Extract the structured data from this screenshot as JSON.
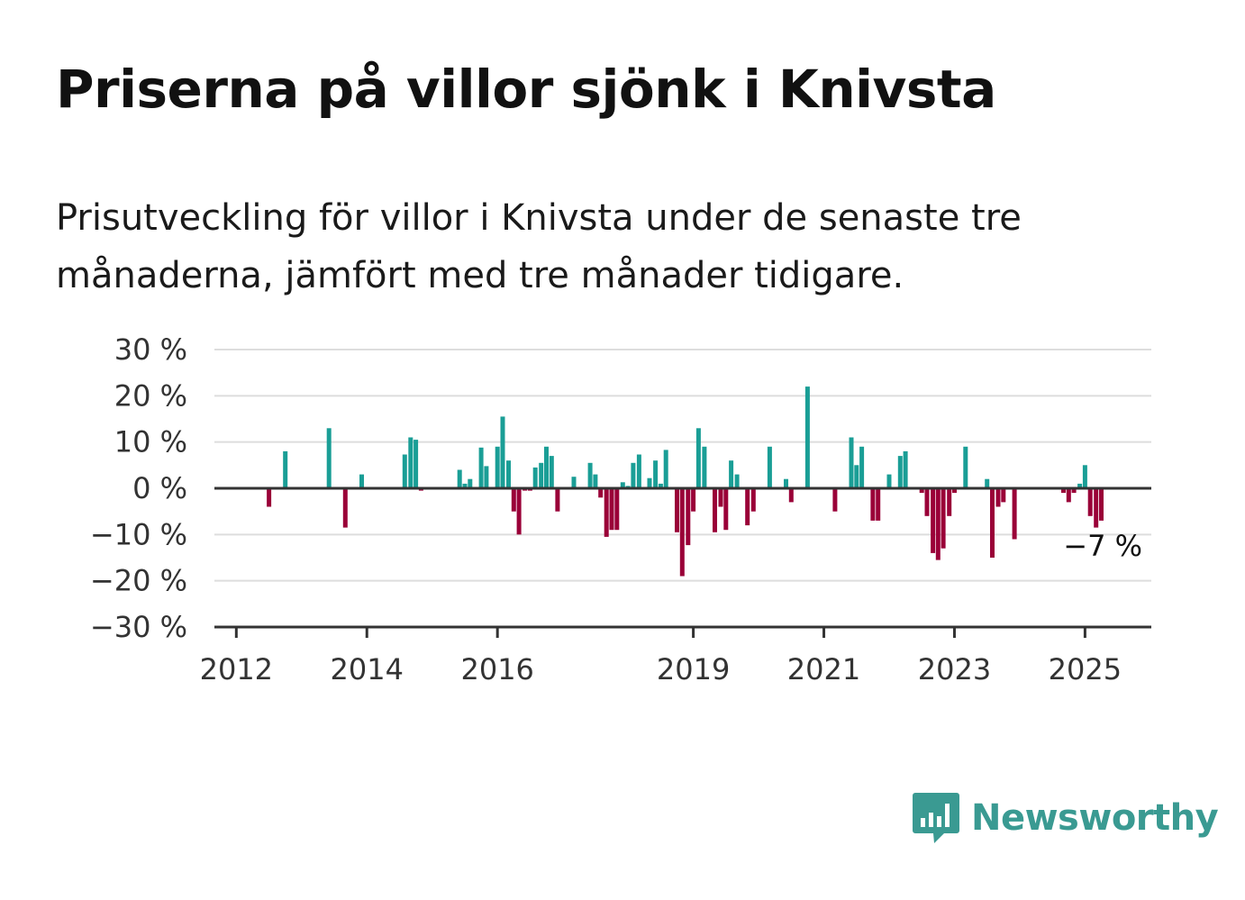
{
  "title": "Priserna på villor sjönk i Knivsta",
  "subtitle": "Prisutveckling för villor i Knivsta under de senaste tre månaderna, jämfört med tre månader tidigare.",
  "brand": {
    "name": "Newsworthy",
    "icon": "bar-chart-speech-bubble-icon"
  },
  "colors": {
    "positive": "#1a9e96",
    "negative": "#9a0038",
    "axis": "#333333",
    "grid": "#dddddd"
  },
  "chart_data": {
    "type": "bar",
    "ylim": [
      -30,
      30
    ],
    "y_ticks": [
      {
        "value": 30,
        "label": "30 %"
      },
      {
        "value": 20,
        "label": "20 %"
      },
      {
        "value": 10,
        "label": "10 %"
      },
      {
        "value": 0,
        "label": "0 %"
      },
      {
        "value": -10,
        "label": "−10 %"
      },
      {
        "value": -20,
        "label": "−20 %"
      },
      {
        "value": -30,
        "label": "−30 %"
      }
    ],
    "x_ticks": [
      {
        "value": 2012,
        "label": "2012"
      },
      {
        "value": 2014,
        "label": "2014"
      },
      {
        "value": 2016,
        "label": "2016"
      },
      {
        "value": 2019,
        "label": "2019"
      },
      {
        "value": 2021,
        "label": "2021"
      },
      {
        "value": 2023,
        "label": "2023"
      },
      {
        "value": 2025,
        "label": "2025"
      }
    ],
    "xlim": [
      2011.83,
      2025.85
    ],
    "grid": true,
    "end_label": "−7 %",
    "series": [
      {
        "values": [
          [
            2012.5,
            -4
          ],
          [
            2012.75,
            8
          ],
          [
            2013.42,
            13
          ],
          [
            2013.67,
            -8.5
          ],
          [
            2013.92,
            3
          ],
          [
            2014.58,
            7.3
          ],
          [
            2014.67,
            11
          ],
          [
            2014.75,
            10.5
          ],
          [
            2014.83,
            -0.5
          ],
          [
            2015.42,
            4
          ],
          [
            2015.5,
            1
          ],
          [
            2015.58,
            2
          ],
          [
            2015.75,
            8.8
          ],
          [
            2015.83,
            4.8
          ],
          [
            2016.0,
            9
          ],
          [
            2016.08,
            15.5
          ],
          [
            2016.17,
            6
          ],
          [
            2016.25,
            -5
          ],
          [
            2016.33,
            -10
          ],
          [
            2016.42,
            -0.5
          ],
          [
            2016.5,
            -0.5
          ],
          [
            2016.58,
            4.5
          ],
          [
            2016.67,
            5.5
          ],
          [
            2016.75,
            9
          ],
          [
            2016.83,
            7
          ],
          [
            2016.92,
            -5
          ],
          [
            2017.17,
            2.5
          ],
          [
            2017.42,
            5.5
          ],
          [
            2017.5,
            3
          ],
          [
            2017.58,
            -2
          ],
          [
            2017.67,
            -10.5
          ],
          [
            2017.75,
            -9
          ],
          [
            2017.83,
            -9
          ],
          [
            2017.92,
            1.3
          ],
          [
            2018.0,
            0.5
          ],
          [
            2018.08,
            5.5
          ],
          [
            2018.17,
            7.3
          ],
          [
            2018.33,
            2.2
          ],
          [
            2018.42,
            6
          ],
          [
            2018.5,
            1
          ],
          [
            2018.58,
            8.3
          ],
          [
            2018.75,
            -9.5
          ],
          [
            2018.83,
            -19
          ],
          [
            2018.92,
            -12.3
          ],
          [
            2019.0,
            -5
          ],
          [
            2019.08,
            13
          ],
          [
            2019.17,
            9
          ],
          [
            2019.33,
            -9.5
          ],
          [
            2019.42,
            -4
          ],
          [
            2019.5,
            -9
          ],
          [
            2019.58,
            6
          ],
          [
            2019.67,
            3
          ],
          [
            2019.83,
            -8
          ],
          [
            2019.92,
            -5
          ],
          [
            2020.17,
            9
          ],
          [
            2020.42,
            2
          ],
          [
            2020.5,
            -3
          ],
          [
            2020.75,
            22
          ],
          [
            2021.17,
            -5
          ],
          [
            2021.42,
            11
          ],
          [
            2021.5,
            5
          ],
          [
            2021.58,
            9
          ],
          [
            2021.75,
            -7
          ],
          [
            2021.83,
            -7
          ],
          [
            2022.0,
            3
          ],
          [
            2022.17,
            7
          ],
          [
            2022.25,
            8
          ],
          [
            2022.5,
            -1
          ],
          [
            2022.58,
            -6
          ],
          [
            2022.67,
            -14
          ],
          [
            2022.75,
            -15.5
          ],
          [
            2022.83,
            -13
          ],
          [
            2022.92,
            -6
          ],
          [
            2023.0,
            -1
          ],
          [
            2023.17,
            9
          ],
          [
            2023.5,
            2
          ],
          [
            2023.58,
            -15
          ],
          [
            2023.67,
            -4
          ],
          [
            2023.75,
            -3
          ],
          [
            2023.92,
            -11
          ],
          [
            2024.67,
            -1
          ],
          [
            2024.75,
            -3
          ],
          [
            2024.83,
            -1
          ],
          [
            2024.92,
            1
          ],
          [
            2025.0,
            5
          ],
          [
            2025.08,
            -6
          ],
          [
            2025.17,
            -8.5
          ],
          [
            2025.25,
            -7
          ]
        ]
      }
    ]
  }
}
